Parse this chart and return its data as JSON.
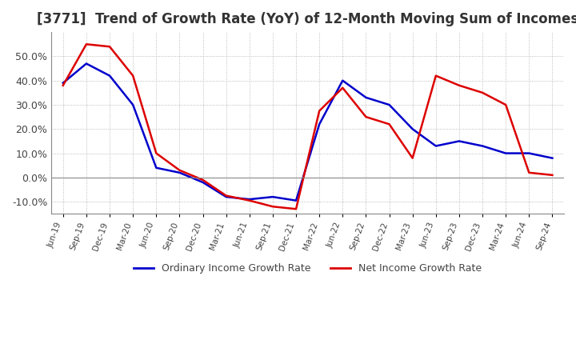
{
  "title": "[3771]  Trend of Growth Rate (YoY) of 12-Month Moving Sum of Incomes",
  "title_fontsize": 12,
  "ylim": [
    -0.15,
    0.6
  ],
  "yticks": [
    -0.1,
    0.0,
    0.1,
    0.2,
    0.3,
    0.4,
    0.5
  ],
  "background_color": "#ffffff",
  "plot_bg_color": "#ffffff",
  "grid_color": "#aaaaaa",
  "ordinary_color": "#0000cc",
  "net_color": "#dd0000",
  "dates": [
    "Jun-19",
    "Sep-19",
    "Dec-19",
    "Mar-20",
    "Jun-20",
    "Sep-20",
    "Dec-20",
    "Mar-21",
    "Jun-21",
    "Sep-21",
    "Dec-21",
    "Mar-22",
    "Jun-22",
    "Sep-22",
    "Dec-22",
    "Mar-23",
    "Jun-23",
    "Sep-23",
    "Dec-23",
    "Mar-24",
    "Jun-24",
    "Sep-24"
  ],
  "ordinary_income": [
    0.39,
    0.47,
    0.42,
    0.3,
    0.04,
    0.02,
    -0.02,
    -0.08,
    -0.09,
    -0.08,
    -0.095,
    0.22,
    0.4,
    0.33,
    0.3,
    0.2,
    0.13,
    0.15,
    0.13,
    0.1,
    0.1,
    0.08
  ],
  "net_income": [
    0.38,
    0.55,
    0.54,
    0.42,
    0.1,
    0.03,
    -0.01,
    -0.075,
    -0.095,
    -0.12,
    -0.13,
    0.275,
    0.37,
    0.25,
    0.22,
    0.08,
    0.42,
    0.38,
    0.35,
    0.3,
    0.02,
    0.01
  ],
  "legend_labels": [
    "Ordinary Income Growth Rate",
    "Net Income Growth Rate"
  ]
}
